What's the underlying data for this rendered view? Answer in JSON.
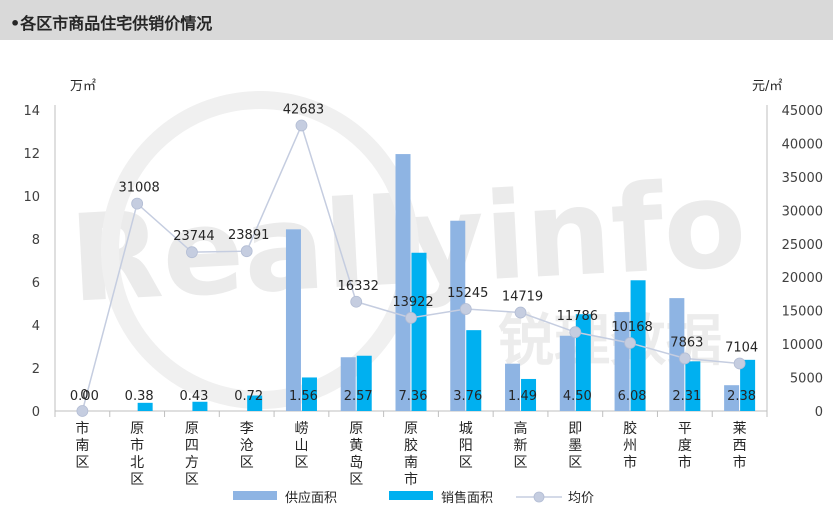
{
  "header": {
    "title": "•各区市商品住宅供销价情况"
  },
  "chart_data": {
    "type": "bar",
    "categories": [
      "市南区",
      "原市北区",
      "原四方区",
      "李沧区",
      "崂山区",
      "原黄岛区",
      "原胶南市",
      "城阳区",
      "高新区",
      "即墨区",
      "胶州市",
      "平度市",
      "莱西市"
    ],
    "series": [
      {
        "name": "供应面积",
        "type": "bar",
        "axis": "left",
        "color": "#8eb4e3",
        "values": [
          0,
          0,
          0,
          0,
          8.45,
          2.5,
          11.95,
          8.85,
          2.2,
          3.5,
          4.6,
          5.25,
          1.2
        ]
      },
      {
        "name": "销售面积",
        "type": "bar",
        "axis": "left",
        "color": "#00b0f0",
        "values": [
          0.0,
          0.38,
          0.43,
          0.72,
          1.56,
          2.57,
          7.36,
          3.76,
          1.49,
          4.5,
          6.08,
          2.31,
          2.38
        ],
        "labels": [
          "0.00",
          "0.38",
          "0.43",
          "0.72",
          "1.56",
          "2.57",
          "7.36",
          "3.76",
          "1.49",
          "4.50",
          "6.08",
          "2.31",
          "2.38"
        ]
      },
      {
        "name": "均价",
        "type": "line",
        "axis": "right",
        "color": "#c5cde0",
        "values": [
          0,
          31008,
          23744,
          23891,
          42683,
          16332,
          13922,
          15245,
          14719,
          11786,
          10168,
          7863,
          7104
        ],
        "labels": [
          "0",
          "31008",
          "23744",
          "23891",
          "42683",
          "16332",
          "13922",
          "15245",
          "14719",
          "11786",
          "10168",
          "7863",
          "7104"
        ]
      }
    ],
    "y_left": {
      "unit": "万㎡",
      "range": [
        0,
        14
      ],
      "ticks": [
        "0",
        "2",
        "4",
        "6",
        "8",
        "10",
        "12",
        "14"
      ]
    },
    "y_right": {
      "unit": "元/㎡",
      "range": [
        0,
        45000
      ],
      "ticks": [
        "0",
        "5000",
        "10000",
        "15000",
        "20000",
        "25000",
        "30000",
        "35000",
        "40000",
        "45000"
      ]
    },
    "grid": false,
    "legend_position": "bottom",
    "watermark": "Reallyinfo 锐理数据"
  }
}
